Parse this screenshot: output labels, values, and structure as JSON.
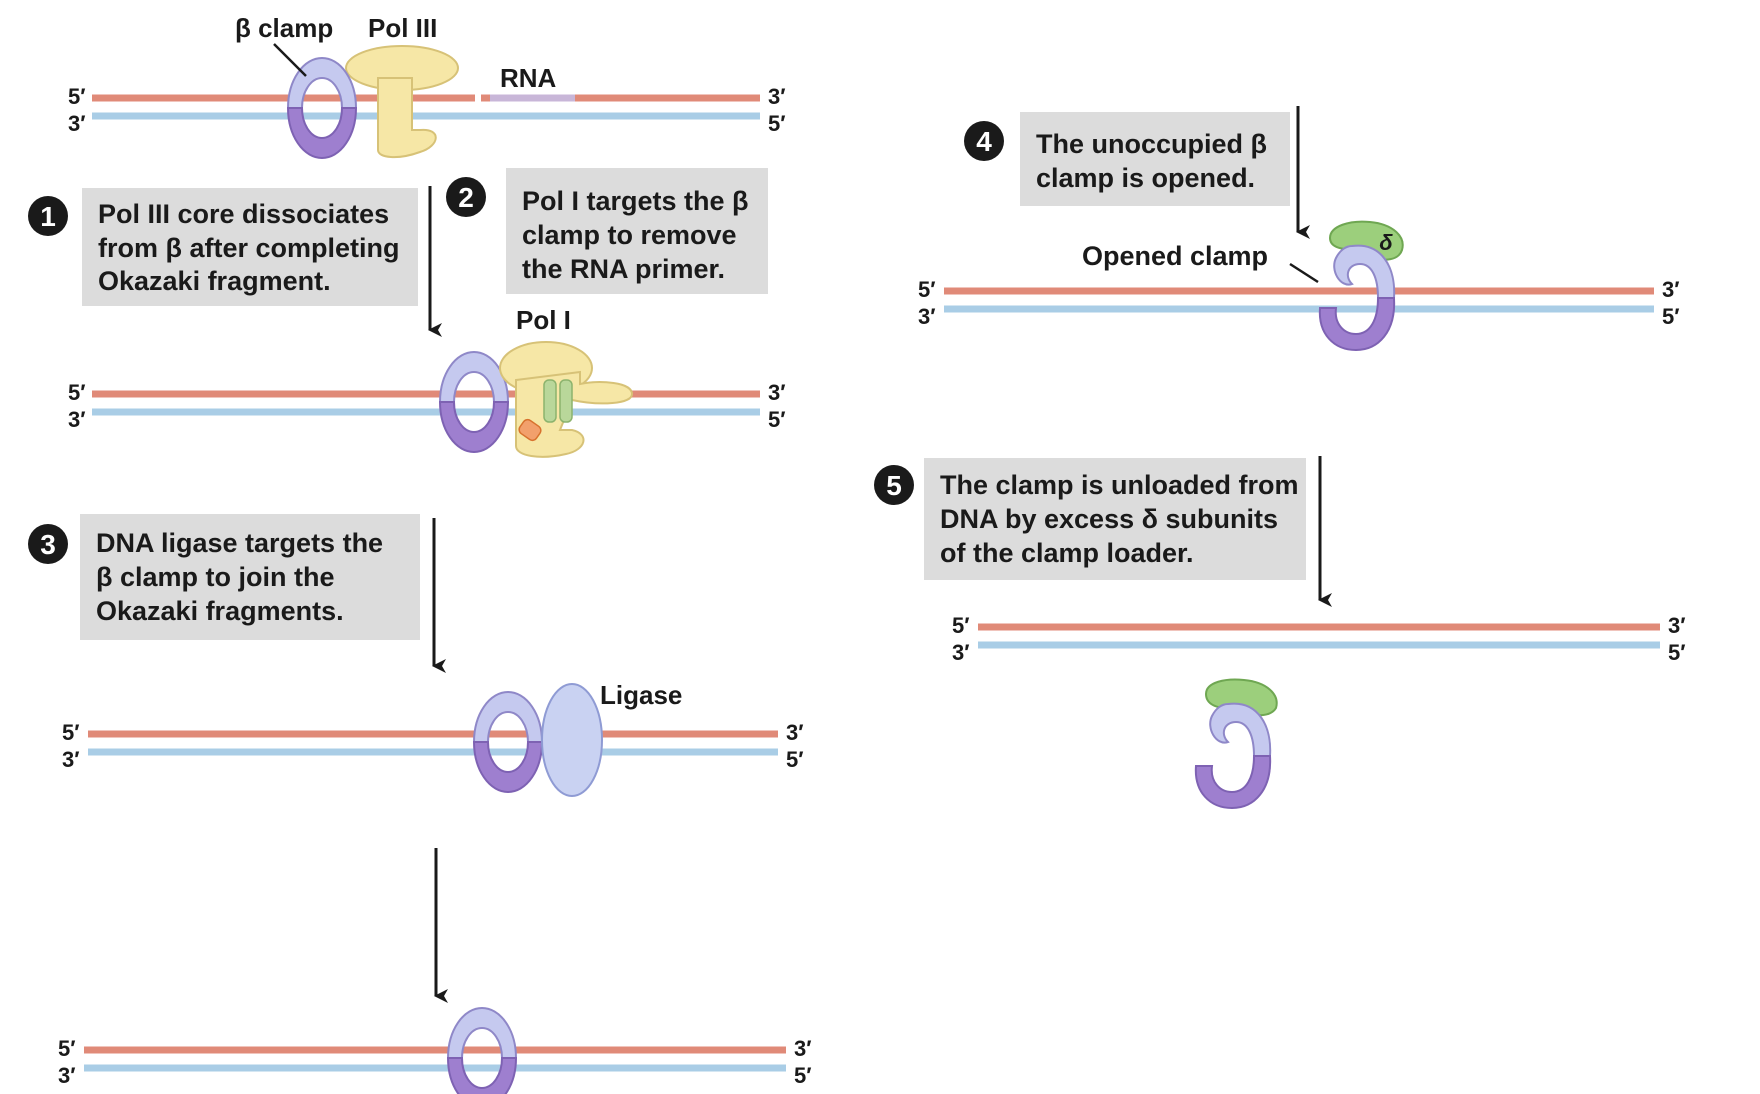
{
  "labels": {
    "beta_clamp": "β clamp",
    "pol3": "Pol III",
    "rna": "RNA",
    "pol1": "Pol I",
    "ligase": "Ligase",
    "opened_clamp": "Opened clamp",
    "delta": "δ"
  },
  "strand_ends": {
    "five": "5′",
    "three": "3′"
  },
  "steps": [
    {
      "num": "1",
      "lines": [
        "Pol III core dissociates",
        "from β after completing",
        "Okazaki fragment."
      ]
    },
    {
      "num": "2",
      "lines": [
        "Pol I targets the β",
        "clamp to remove",
        "the RNA primer."
      ]
    },
    {
      "num": "3",
      "lines": [
        "DNA ligase targets the",
        "β clamp to join the",
        "Okazaki fragments."
      ]
    },
    {
      "num": "4",
      "lines": [
        "The unoccupied β",
        "clamp is opened."
      ]
    },
    {
      "num": "5",
      "lines": [
        "The clamp is unloaded from",
        "DNA by excess δ subunits",
        "of the clamp loader."
      ]
    }
  ],
  "colors": {
    "top_strand": "#e08a78",
    "bottom_strand": "#a9cde6",
    "rna": "#c8b6d8",
    "clamp_light": "#c5c9ef",
    "clamp_dark": "#9e7fcf",
    "pol_yellow": "#f6e7a6",
    "delta_green": "#9ccf7c",
    "ligase": "#c9d2f2",
    "text_box": "#dcdcdc",
    "badge": "#1a1a1a"
  }
}
